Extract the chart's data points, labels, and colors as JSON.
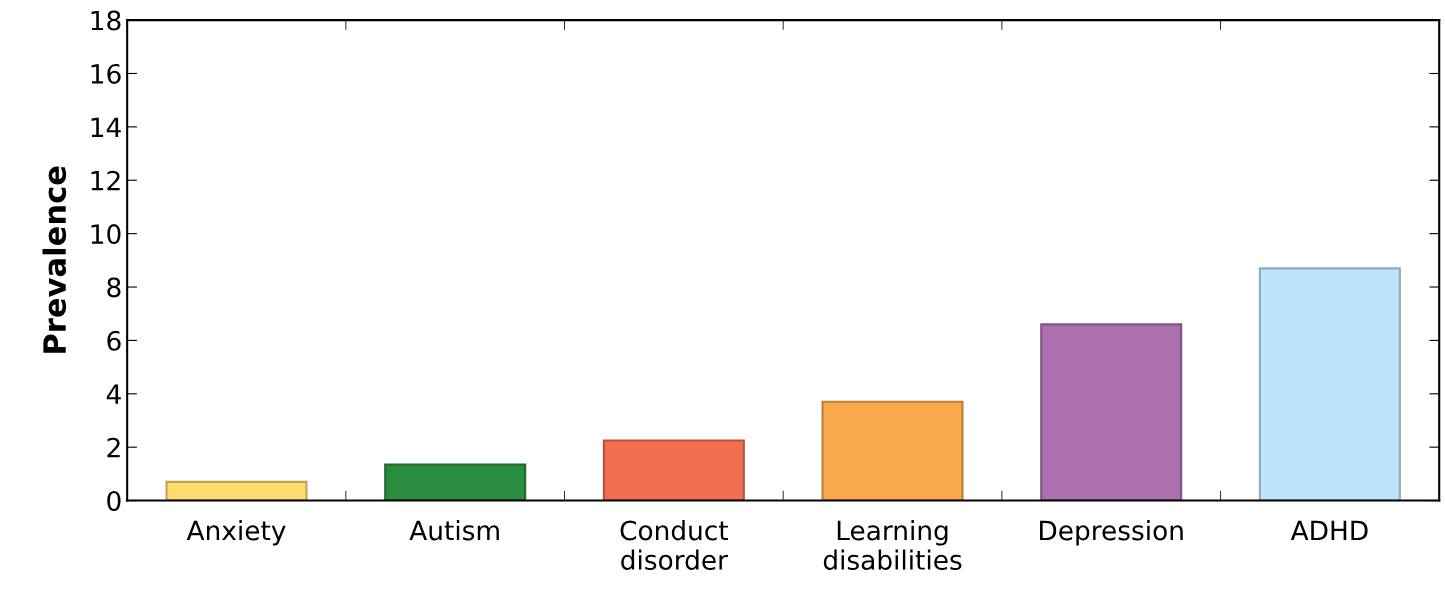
{
  "chart_data": {
    "type": "bar",
    "ylabel": "Prevalence",
    "categories": [
      "Anxiety",
      "Autism",
      "Conduct\ndisorder",
      "Learning\ndisabilities",
      "Depression",
      "ADHD"
    ],
    "values": [
      0.7,
      1.35,
      2.25,
      3.7,
      6.6,
      8.7
    ],
    "colors": [
      "#fedb6e",
      "#2a8c3e",
      "#f26d51",
      "#f9a84b",
      "#ab70ad",
      "#bde4f8"
    ],
    "ylim": [
      0,
      18
    ],
    "yticks": [
      0,
      2,
      4,
      6,
      8,
      10,
      12,
      14,
      16,
      18
    ],
    "grid": false
  }
}
